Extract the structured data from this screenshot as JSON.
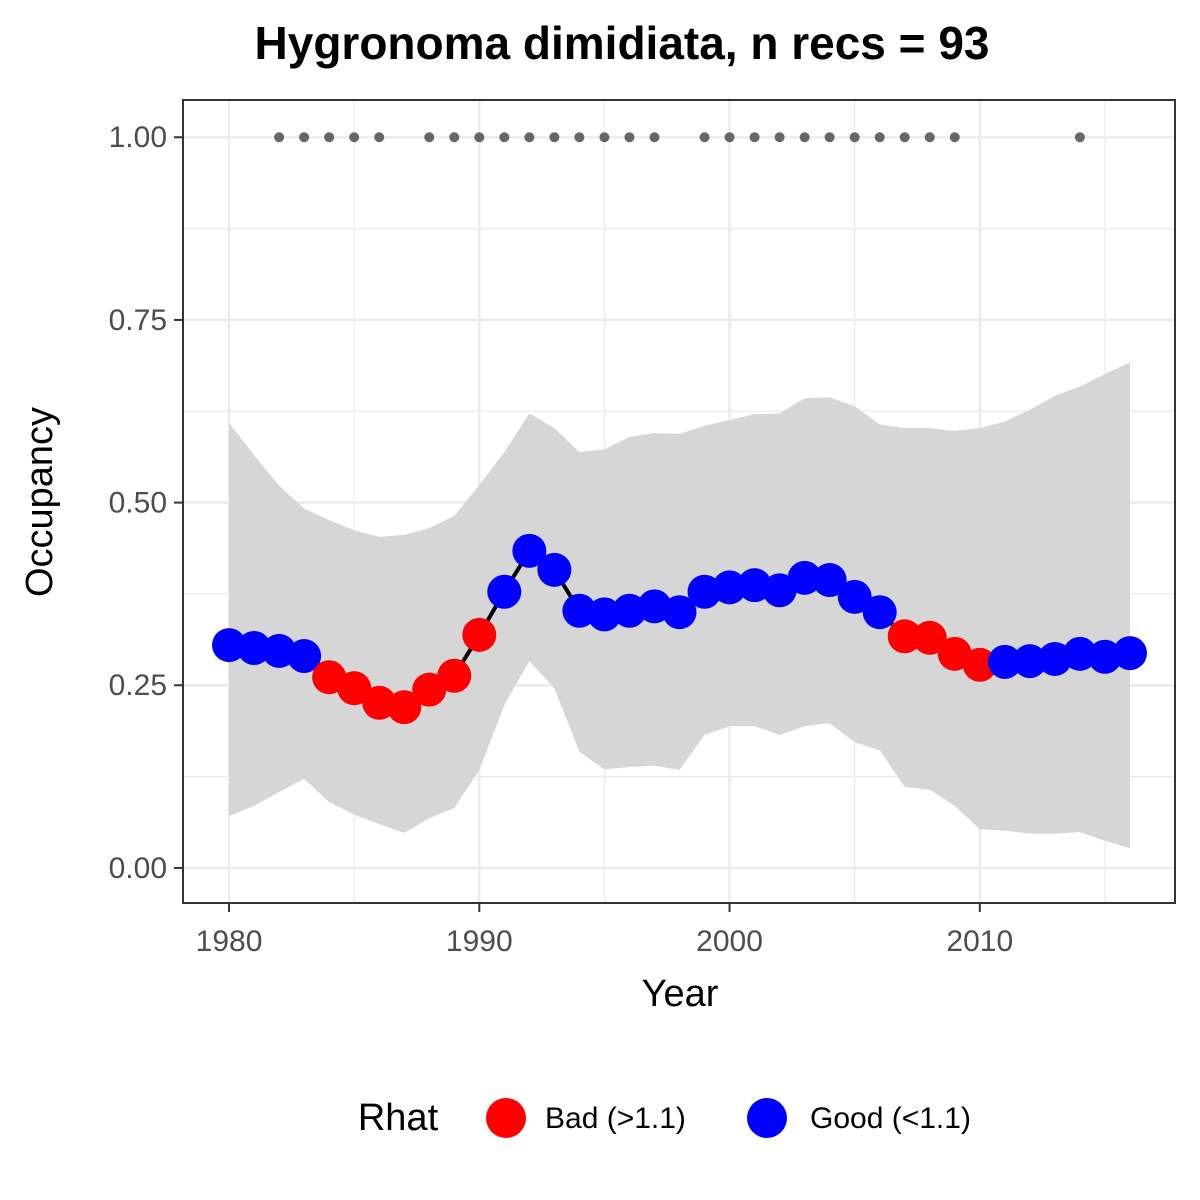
{
  "chart_data": {
    "type": "line",
    "title": "Hygronoma dimidiata, n recs = 93",
    "x_label": "Year",
    "y_label": "Occupancy",
    "x": [
      1980,
      1981,
      1982,
      1983,
      1984,
      1985,
      1986,
      1987,
      1988,
      1989,
      1990,
      1991,
      1992,
      1993,
      1994,
      1995,
      1996,
      1997,
      1998,
      1999,
      2000,
      2001,
      2002,
      2003,
      2004,
      2005,
      2006,
      2007,
      2008,
      2009,
      2010,
      2011,
      2012,
      2013,
      2014,
      2015,
      2016
    ],
    "values": [
      0.305,
      0.301,
      0.297,
      0.29,
      0.261,
      0.246,
      0.226,
      0.22,
      0.244,
      0.263,
      0.319,
      0.378,
      0.434,
      0.408,
      0.352,
      0.347,
      0.352,
      0.358,
      0.35,
      0.378,
      0.384,
      0.387,
      0.38,
      0.397,
      0.394,
      0.371,
      0.35,
      0.317,
      0.315,
      0.293,
      0.278,
      0.282,
      0.283,
      0.286,
      0.293,
      0.289,
      0.294
    ],
    "upper": [
      0.609,
      0.565,
      0.523,
      0.492,
      0.476,
      0.462,
      0.453,
      0.456,
      0.465,
      0.482,
      0.524,
      0.569,
      0.622,
      0.602,
      0.569,
      0.573,
      0.59,
      0.595,
      0.594,
      0.605,
      0.613,
      0.621,
      0.622,
      0.643,
      0.644,
      0.632,
      0.607,
      0.602,
      0.602,
      0.598,
      0.602,
      0.611,
      0.627,
      0.646,
      0.659,
      0.676,
      0.692
    ],
    "lower": [
      0.071,
      0.085,
      0.104,
      0.122,
      0.09,
      0.073,
      0.06,
      0.048,
      0.068,
      0.082,
      0.134,
      0.223,
      0.283,
      0.246,
      0.159,
      0.135,
      0.138,
      0.14,
      0.134,
      0.182,
      0.194,
      0.194,
      0.182,
      0.194,
      0.198,
      0.172,
      0.161,
      0.111,
      0.107,
      0.085,
      0.053,
      0.051,
      0.047,
      0.047,
      0.049,
      0.037,
      0.027
    ],
    "rhat": [
      "Good (<1.1)",
      "Good (<1.1)",
      "Good (<1.1)",
      "Good (<1.1)",
      "Bad (>1.1)",
      "Bad (>1.1)",
      "Bad (>1.1)",
      "Bad (>1.1)",
      "Bad (>1.1)",
      "Bad (>1.1)",
      "Bad (>1.1)",
      "Good (<1.1)",
      "Good (<1.1)",
      "Good (<1.1)",
      "Good (<1.1)",
      "Good (<1.1)",
      "Good (<1.1)",
      "Good (<1.1)",
      "Good (<1.1)",
      "Good (<1.1)",
      "Good (<1.1)",
      "Good (<1.1)",
      "Good (<1.1)",
      "Good (<1.1)",
      "Good (<1.1)",
      "Good (<1.1)",
      "Good (<1.1)",
      "Bad (>1.1)",
      "Bad (>1.1)",
      "Bad (>1.1)",
      "Bad (>1.1)",
      "Good (<1.1)",
      "Good (<1.1)",
      "Good (<1.1)",
      "Good (<1.1)",
      "Good (<1.1)",
      "Good (<1.1)"
    ],
    "line_color": "#000000",
    "ribbon_color": "#d6d6d6",
    "records": {
      "color": "#666666",
      "x": [
        1982,
        1983,
        1984,
        1985,
        1986,
        1988,
        1989,
        1990,
        1991,
        1992,
        1993,
        1994,
        1995,
        1996,
        1997,
        1999,
        2000,
        2001,
        2002,
        2003,
        2004,
        2005,
        2006,
        2007,
        2008,
        2009,
        2014
      ],
      "values": [
        1,
        1,
        1,
        1,
        1,
        1,
        1,
        1,
        1,
        1,
        1,
        1,
        1,
        1,
        1,
        1,
        1,
        1,
        1,
        1,
        1,
        1,
        1,
        1,
        1,
        1,
        1
      ]
    },
    "legend": {
      "title": "Rhat",
      "position": "bottom",
      "items": [
        {
          "name": "Bad (>1.1)",
          "color": "#ff0000"
        },
        {
          "name": "Good (<1.1)",
          "color": "#0000ff"
        }
      ]
    },
    "xlim": [
      1978.16,
      2017.8
    ],
    "ylim": [
      -0.048,
      1.051
    ],
    "xticks": [
      1980,
      1990,
      2000,
      2010
    ],
    "yticks": [
      {
        "value": 0,
        "label": "0.00"
      },
      {
        "value": 0.25,
        "label": "0.25"
      },
      {
        "value": 0.5,
        "label": "0.50"
      },
      {
        "value": 0.75,
        "label": "0.75"
      },
      {
        "value": 1,
        "label": "1.00"
      }
    ],
    "grid": true
  }
}
